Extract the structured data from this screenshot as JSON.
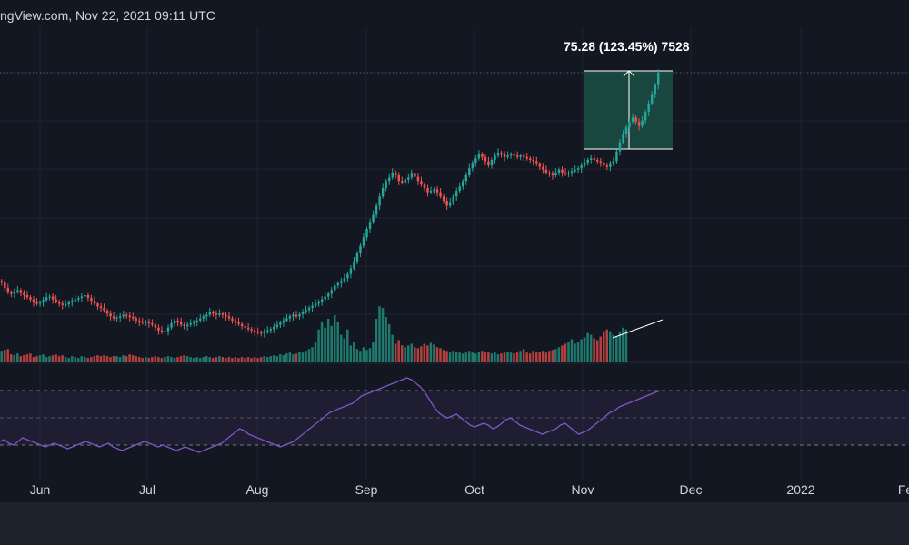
{
  "header": {
    "watermark": "ngView.com, Nov 22, 2021 09:11 UTC"
  },
  "measure": {
    "label": "75.28 (123.45%) 7528"
  },
  "xaxis": {
    "ticks": [
      "Jun",
      "Jul",
      "Aug",
      "Sep",
      "Oct",
      "Nov",
      "Dec",
      "2022",
      "Fe"
    ]
  },
  "colors": {
    "background": "#131722",
    "up": "#26a69a",
    "down": "#ef5350",
    "volume_up": "#1f7a6e",
    "volume_down": "#b2403e",
    "rsi_line": "#7e57c2",
    "rsi_band": "#7e57c2",
    "measure_fill": "#1b4f43",
    "grid": "#1f2330"
  },
  "chart_data": [
    {
      "type": "candlestick",
      "title": "",
      "x_ticks": [
        "Jun",
        "Jul",
        "Aug",
        "Sep",
        "Oct",
        "Nov",
        "Dec",
        "2022",
        "Fe"
      ],
      "close_approx": [
        1.06,
        0.98,
        0.92,
        0.9,
        0.93,
        0.95,
        0.91,
        0.88,
        0.85,
        0.82,
        0.78,
        0.76,
        0.78,
        0.81,
        0.85,
        0.86,
        0.82,
        0.79,
        0.76,
        0.74,
        0.75,
        0.78,
        0.8,
        0.82,
        0.84,
        0.86,
        0.88,
        0.84,
        0.8,
        0.76,
        0.72,
        0.7,
        0.66,
        0.62,
        0.58,
        0.55,
        0.56,
        0.58,
        0.6,
        0.59,
        0.57,
        0.55,
        0.52,
        0.5,
        0.49,
        0.5,
        0.48,
        0.46,
        0.42,
        0.38,
        0.36,
        0.37,
        0.42,
        0.48,
        0.52,
        0.5,
        0.46,
        0.44,
        0.46,
        0.48,
        0.5,
        0.52,
        0.55,
        0.58,
        0.6,
        0.64,
        0.62,
        0.6,
        0.62,
        0.6,
        0.58,
        0.55,
        0.52,
        0.5,
        0.47,
        0.44,
        0.42,
        0.4,
        0.38,
        0.36,
        0.35,
        0.34,
        0.36,
        0.38,
        0.4,
        0.43,
        0.46,
        0.49,
        0.52,
        0.55,
        0.58,
        0.6,
        0.58,
        0.61,
        0.64,
        0.67,
        0.7,
        0.73,
        0.76,
        0.79,
        0.82,
        0.86,
        0.9,
        0.95,
        1.02,
        1.05,
        1.08,
        1.12,
        1.18,
        1.26,
        1.36,
        1.48,
        1.58,
        1.7,
        1.82,
        1.92,
        2.02,
        2.15,
        2.28,
        2.4,
        2.5,
        2.55,
        2.62,
        2.58,
        2.5,
        2.48,
        2.52,
        2.55,
        2.6,
        2.56,
        2.5,
        2.45,
        2.4,
        2.34,
        2.36,
        2.38,
        2.34,
        2.28,
        2.22,
        2.15,
        2.2,
        2.28,
        2.36,
        2.42,
        2.5,
        2.58,
        2.68,
        2.76,
        2.82,
        2.88,
        2.84,
        2.78,
        2.72,
        2.8,
        2.86,
        2.9,
        2.88,
        2.84,
        2.86,
        2.88,
        2.86,
        2.84,
        2.86,
        2.84,
        2.82,
        2.8,
        2.78,
        2.74,
        2.7,
        2.66,
        2.62,
        2.6,
        2.58,
        2.62,
        2.66,
        2.62,
        2.6,
        2.62,
        2.64,
        2.66,
        2.68,
        2.72,
        2.76,
        2.8,
        2.82,
        2.8,
        2.78,
        2.76,
        2.72,
        2.7,
        2.74,
        2.78,
        2.92,
        3.05,
        3.16,
        3.26,
        3.34,
        3.4,
        3.34,
        3.28,
        3.36,
        3.48,
        3.6,
        3.72,
        3.86,
        4.04
      ],
      "volume_approx": [
        0.12,
        0.13,
        0.14,
        0.08,
        0.07,
        0.09,
        0.06,
        0.07,
        0.08,
        0.09,
        0.05,
        0.06,
        0.07,
        0.08,
        0.05,
        0.06,
        0.07,
        0.08,
        0.06,
        0.07,
        0.05,
        0.04,
        0.06,
        0.05,
        0.04,
        0.06,
        0.05,
        0.04,
        0.05,
        0.06,
        0.07,
        0.06,
        0.07,
        0.06,
        0.05,
        0.06,
        0.06,
        0.05,
        0.07,
        0.06,
        0.08,
        0.07,
        0.06,
        0.05,
        0.04,
        0.05,
        0.04,
        0.05,
        0.06,
        0.05,
        0.04,
        0.05,
        0.06,
        0.05,
        0.04,
        0.05,
        0.06,
        0.07,
        0.06,
        0.05,
        0.04,
        0.05,
        0.04,
        0.05,
        0.06,
        0.05,
        0.04,
        0.05,
        0.06,
        0.05,
        0.04,
        0.05,
        0.04,
        0.05,
        0.04,
        0.05,
        0.04,
        0.05,
        0.04,
        0.05,
        0.04,
        0.05,
        0.06,
        0.05,
        0.06,
        0.07,
        0.06,
        0.08,
        0.07,
        0.09,
        0.1,
        0.08,
        0.09,
        0.11,
        0.1,
        0.12,
        0.14,
        0.16,
        0.22,
        0.36,
        0.45,
        0.38,
        0.48,
        0.4,
        0.52,
        0.44,
        0.3,
        0.26,
        0.36,
        0.18,
        0.22,
        0.14,
        0.12,
        0.16,
        0.13,
        0.15,
        0.22,
        0.48,
        0.62,
        0.6,
        0.5,
        0.42,
        0.3,
        0.2,
        0.24,
        0.18,
        0.16,
        0.18,
        0.2,
        0.16,
        0.15,
        0.17,
        0.2,
        0.18,
        0.21,
        0.19,
        0.16,
        0.15,
        0.13,
        0.12,
        0.1,
        0.12,
        0.11,
        0.1,
        0.09,
        0.1,
        0.12,
        0.1,
        0.09,
        0.11,
        0.12,
        0.1,
        0.11,
        0.09,
        0.1,
        0.08,
        0.09,
        0.1,
        0.11,
        0.1,
        0.09,
        0.1,
        0.12,
        0.14,
        0.1,
        0.09,
        0.12,
        0.1,
        0.11,
        0.12,
        0.1,
        0.12,
        0.13,
        0.14,
        0.16,
        0.18,
        0.2,
        0.22,
        0.25,
        0.2,
        0.22,
        0.25,
        0.27,
        0.32,
        0.3,
        0.26,
        0.24,
        0.28,
        0.34,
        0.36,
        0.34,
        0.3,
        0.28,
        0.33,
        0.38,
        0.36
      ],
      "rsi_approx": [
        24,
        26,
        22,
        20,
        24,
        28,
        26,
        24,
        22,
        20,
        18,
        20,
        22,
        20,
        18,
        16,
        18,
        20,
        22,
        24,
        22,
        20,
        18,
        20,
        22,
        18,
        16,
        14,
        16,
        18,
        20,
        22,
        24,
        22,
        20,
        18,
        20,
        18,
        16,
        14,
        16,
        18,
        16,
        14,
        12,
        14,
        16,
        18,
        20,
        22,
        26,
        30,
        34,
        38,
        36,
        32,
        30,
        28,
        26,
        24,
        22,
        20,
        18,
        20,
        22,
        24,
        28,
        32,
        36,
        40,
        44,
        48,
        52,
        56,
        58,
        60,
        62,
        64,
        66,
        70,
        74,
        76,
        78,
        80,
        82,
        84,
        86,
        88,
        90,
        92,
        94,
        92,
        88,
        84,
        78,
        70,
        62,
        56,
        52,
        50,
        52,
        54,
        50,
        46,
        42,
        40,
        42,
        44,
        42,
        38,
        40,
        44,
        48,
        50,
        46,
        42,
        40,
        38,
        36,
        34,
        32,
        34,
        36,
        38,
        42,
        44,
        40,
        36,
        32,
        34,
        36,
        40,
        44,
        48,
        52,
        56,
        58,
        62,
        64,
        66,
        68,
        70,
        72,
        74,
        76,
        78,
        80
      ],
      "indicator_band": [
        30,
        70
      ]
    }
  ]
}
